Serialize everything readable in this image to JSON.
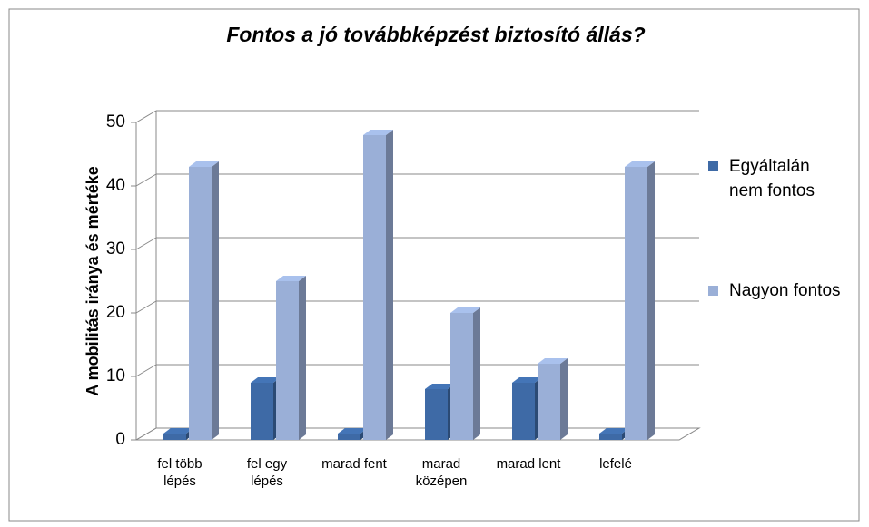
{
  "chart_data": {
    "type": "bar3d",
    "title": "Fontos a jó továbbképzést biztosító állás?",
    "y_label": "A mobilitás iránya és mértéke",
    "categories": [
      "fel több lépés",
      "fel egy lépés",
      "marad fent",
      "marad középen",
      "marad lent",
      "lefelé"
    ],
    "series": [
      {
        "name": "Egyáltalán nem fontos",
        "color": "#3e6aa6",
        "values": [
          1,
          9,
          1,
          8,
          9,
          1
        ]
      },
      {
        "name": "Nagyon fontos",
        "color": "#9aafd7",
        "values": [
          43,
          25,
          48,
          20,
          12,
          43
        ]
      }
    ],
    "ylim": [
      0,
      50
    ],
    "yticks": [
      0,
      10,
      20,
      30,
      40,
      50
    ],
    "grid": true,
    "legend": "right"
  }
}
